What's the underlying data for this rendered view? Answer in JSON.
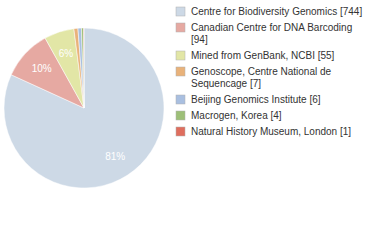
{
  "chart_data": {
    "type": "pie",
    "categories": [
      "Centre for Biodiversity Genomics [744]",
      "Canadian Centre for DNA Barcoding [94]",
      "Mined from GenBank, NCBI [55]",
      "Genoscope, Centre National de Sequencage [7]",
      "Beijing Genomics Institute [6]",
      "Macrogen, Korea [4]",
      "Natural History Museum, London [1]"
    ],
    "values": [
      81,
      10,
      6,
      0.8,
      0.7,
      0.4,
      0.1
    ],
    "value_labels": [
      "81%",
      "10%",
      "6%",
      null,
      null,
      null,
      null
    ],
    "data_labels": true,
    "colors": [
      "#cdd9e6",
      "#e6a9a2",
      "#e2e6a6",
      "#e9b27a",
      "#a9bfe0",
      "#9dbf78",
      "#df6e5e"
    ],
    "legend": "right"
  }
}
